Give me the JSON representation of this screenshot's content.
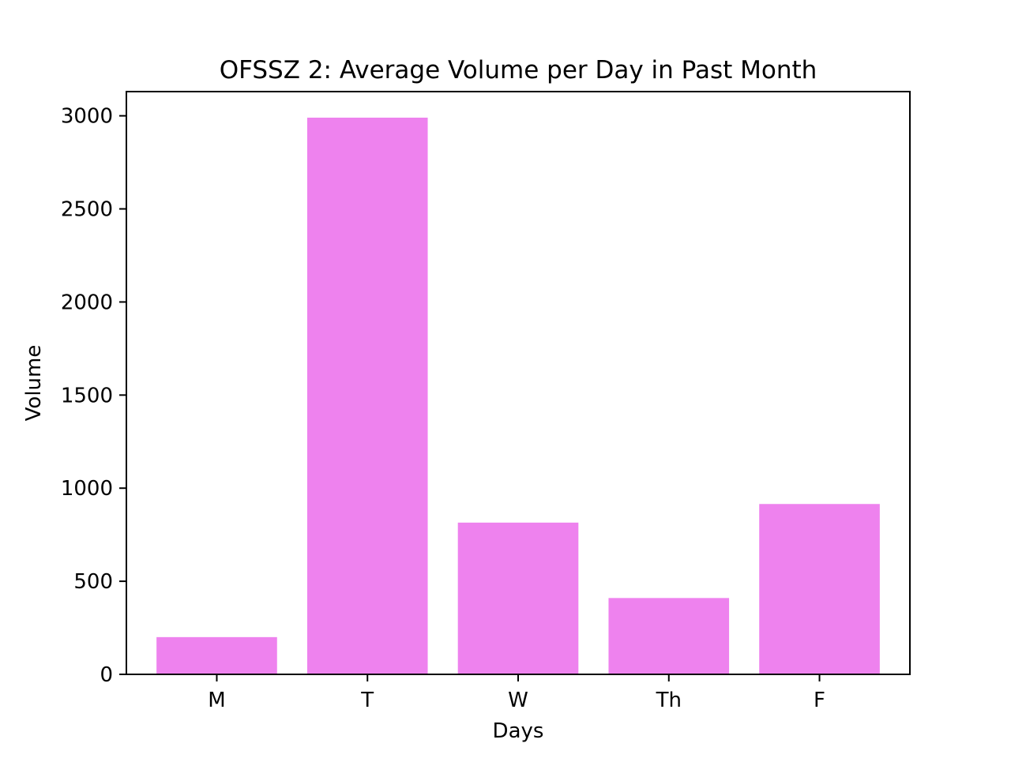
{
  "chart_data": {
    "type": "bar",
    "title": "OFSSZ 2: Average Volume per Day in Past Month",
    "xlabel": "Days",
    "ylabel": "Volume",
    "categories": [
      "M",
      "T",
      "W",
      "Th",
      "F"
    ],
    "values": [
      200,
      2990,
      815,
      410,
      915
    ],
    "ylim": [
      0,
      3130
    ],
    "yticks": [
      0,
      500,
      1000,
      1500,
      2000,
      2500,
      3000
    ],
    "bar_color": "#ee82ee",
    "grid": false,
    "legend": "none"
  }
}
